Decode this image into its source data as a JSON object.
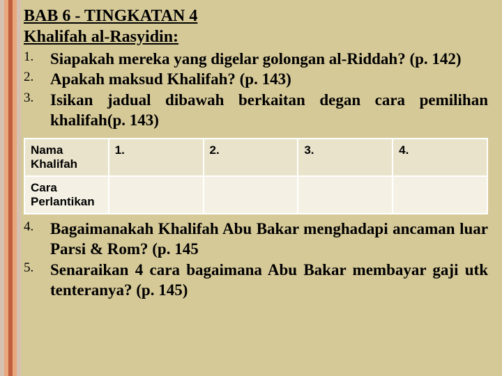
{
  "heading": {
    "line1": "BAB 6 - TINGKATAN 4",
    "line2": "Khalifah al-Rasyidin:"
  },
  "questions_top": [
    {
      "n": "1.",
      "text": "Siapakah mereka yang digelar golongan al-Riddah? (p. 142)"
    },
    {
      "n": "2.",
      "text": "Apakah maksud Khalifah? (p. 143)"
    },
    {
      "n": "3.",
      "text": "Isikan jadual dibawah berkaitan degan cara pemilihan khalifah(p. 143)"
    }
  ],
  "table": {
    "row1_header": "Nama Khalifah",
    "row2_header": "Cara Perlantikan",
    "cols": [
      "1.",
      "2.",
      "3.",
      "4."
    ]
  },
  "questions_bottom": [
    {
      "n": "4.",
      "text": "Bagaimanakah Khalifah Abu Bakar menghadapi ancaman luar Parsi & Rom? (p. 145"
    },
    {
      "n": "5.",
      "text": "Senaraikan 4 cara bagaimana Abu Bakar membayar gaji utk tenteranya? (p. 145)"
    }
  ],
  "colors": {
    "background": "#d6c998",
    "table_row_a": "#e9e3cb",
    "table_row_b": "#f4f1e4",
    "stripes": [
      "#d6c0b0",
      "#e8a87c",
      "#c15e3e",
      "#e8a87c",
      "#d6c0b0"
    ]
  }
}
